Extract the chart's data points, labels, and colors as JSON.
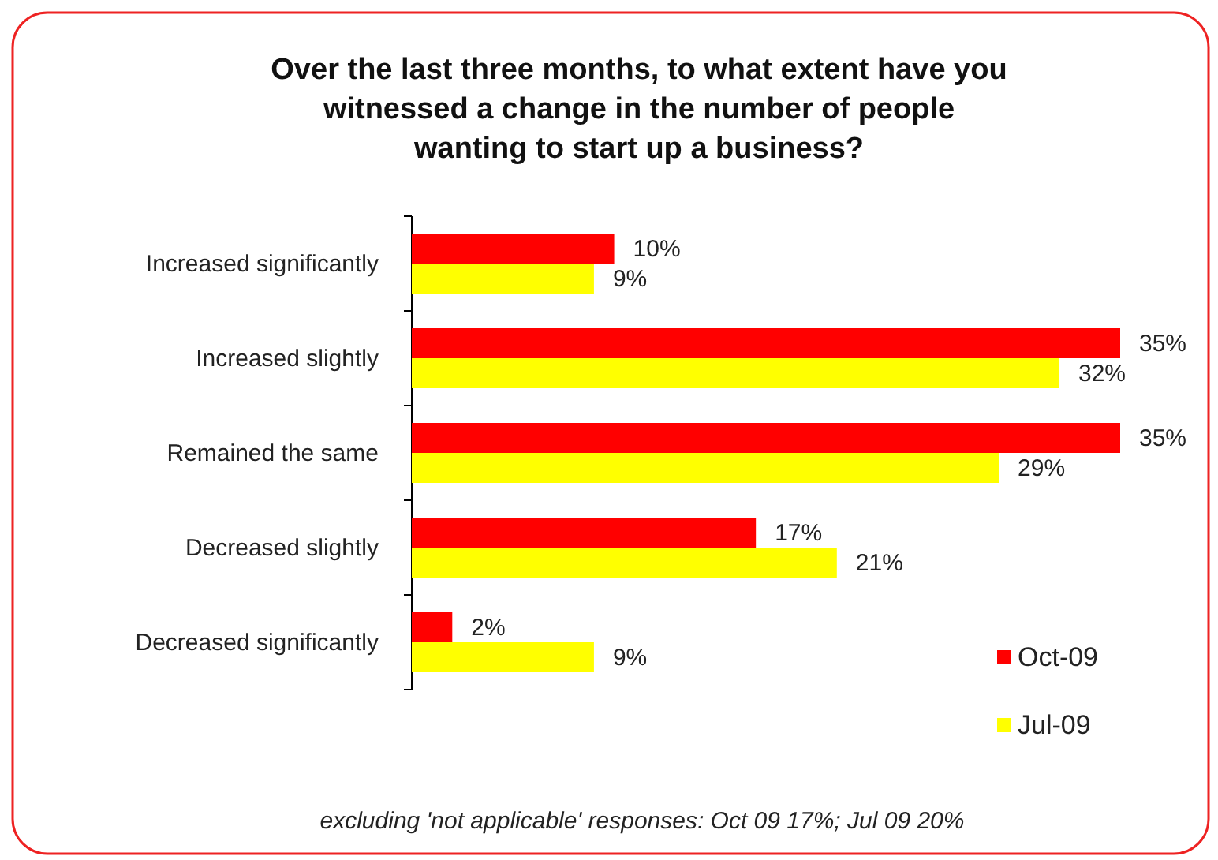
{
  "chart_data": {
    "type": "bar",
    "orientation": "horizontal",
    "title": "Over the last three months, to what extent have you\nwitnessed a change in the number of people\nwanting to start up a business?",
    "categories": [
      "Increased significantly",
      "Increased slightly",
      "Remained the same",
      "Decreased slightly",
      "Decreased significantly"
    ],
    "series": [
      {
        "name": "Oct-09",
        "color": "#ff0000",
        "values": [
          10,
          35,
          35,
          17,
          2
        ],
        "value_labels": [
          "10%",
          "35%",
          "35%",
          "17%",
          "2%"
        ]
      },
      {
        "name": "Jul-09",
        "color": "#ffff00",
        "values": [
          9,
          32,
          29,
          21,
          9
        ],
        "value_labels": [
          "9%",
          "32%",
          "29%",
          "21%",
          "9%"
        ]
      }
    ],
    "legend": "bottom right",
    "annotations": [
      "excluding 'not applicable' responses: Oct 09 17%; Jul 09 20%"
    ]
  }
}
